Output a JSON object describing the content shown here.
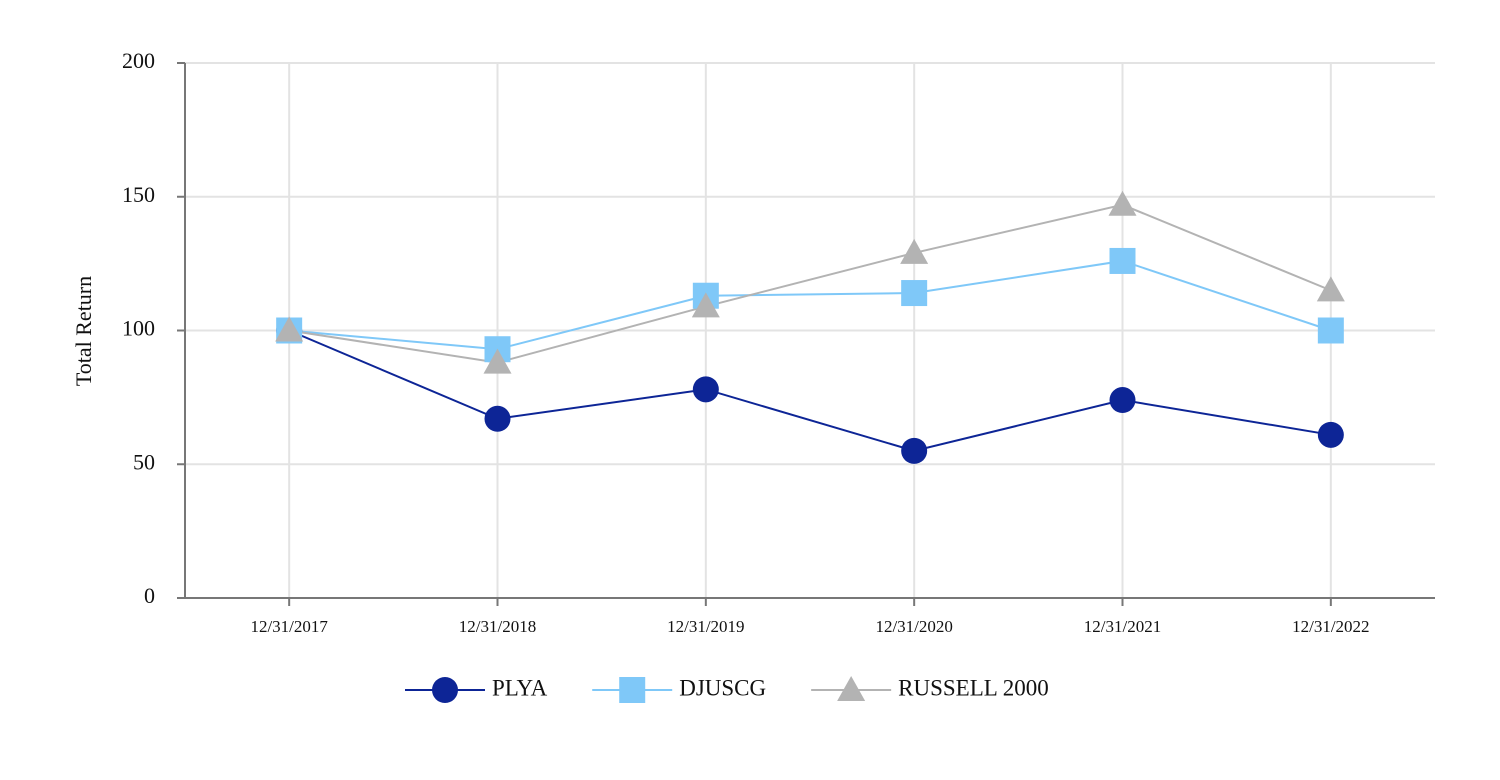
{
  "chart_data": {
    "type": "line",
    "y_label": "Total Return",
    "categories": [
      "12/31/2017",
      "12/31/2018",
      "12/31/2019",
      "12/31/2020",
      "12/31/2021",
      "12/31/2022"
    ],
    "series": [
      {
        "name": "PLYA",
        "color": "#0d2596",
        "marker": "circle",
        "values": [
          100,
          67,
          78,
          55,
          74,
          61
        ]
      },
      {
        "name": "DJUSCG",
        "color": "#7fc8f8",
        "marker": "square",
        "values": [
          100,
          93,
          113,
          114,
          126,
          100
        ]
      },
      {
        "name": "RUSSELL 2000",
        "color": "#b3b3b3",
        "marker": "triangle",
        "values": [
          100,
          88,
          109,
          129,
          147,
          115
        ]
      }
    ],
    "ylim": [
      0,
      200
    ],
    "yticks": [
      0,
      50,
      100,
      150,
      200
    ],
    "grid": true,
    "legend": "bottom"
  }
}
